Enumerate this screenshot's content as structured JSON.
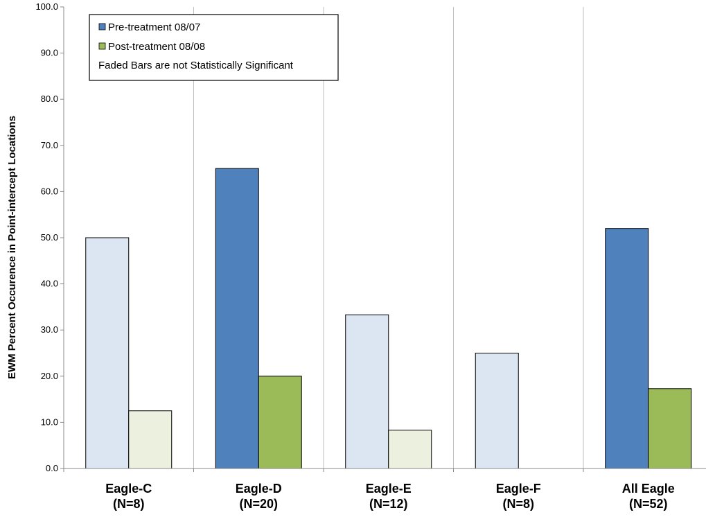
{
  "chart_data": {
    "type": "bar",
    "ylabel": "EWM Percent Occurence in Point-intercept Locations",
    "xlabel": "",
    "ylim": [
      0,
      100
    ],
    "yticks": [
      0,
      10,
      20,
      30,
      40,
      50,
      60,
      70,
      80,
      90,
      100
    ],
    "ytick_labels": [
      "0.0",
      "10.0",
      "20.0",
      "30.0",
      "40.0",
      "50.0",
      "60.0",
      "70.0",
      "80.0",
      "90.0",
      "100.0"
    ],
    "categories": [
      {
        "name": "Eagle-C",
        "n": "(N=8)"
      },
      {
        "name": "Eagle-D",
        "n": "(N=20)"
      },
      {
        "name": "Eagle-E",
        "n": "(N=12)"
      },
      {
        "name": "Eagle-F",
        "n": "(N=8)"
      },
      {
        "name": "All Eagle",
        "n": "(N=52)"
      }
    ],
    "series": [
      {
        "name": "Pre-treatment 08/07",
        "color": "#4f81bd",
        "faded_color": "#dce6f2",
        "values": [
          50.0,
          65.0,
          33.3,
          25.0,
          52.0
        ],
        "significant": [
          false,
          true,
          false,
          false,
          true
        ]
      },
      {
        "name": "Post-treatment 08/08",
        "color": "#9bbb59",
        "faded_color": "#ebf1de",
        "values": [
          12.5,
          20.0,
          8.3,
          0.0,
          17.3
        ],
        "significant": [
          false,
          true,
          false,
          false,
          true
        ]
      }
    ],
    "legend_note": "Faded Bars are not Statistically Significant",
    "legend_position": "top-left",
    "grid": "vertical separators only"
  }
}
